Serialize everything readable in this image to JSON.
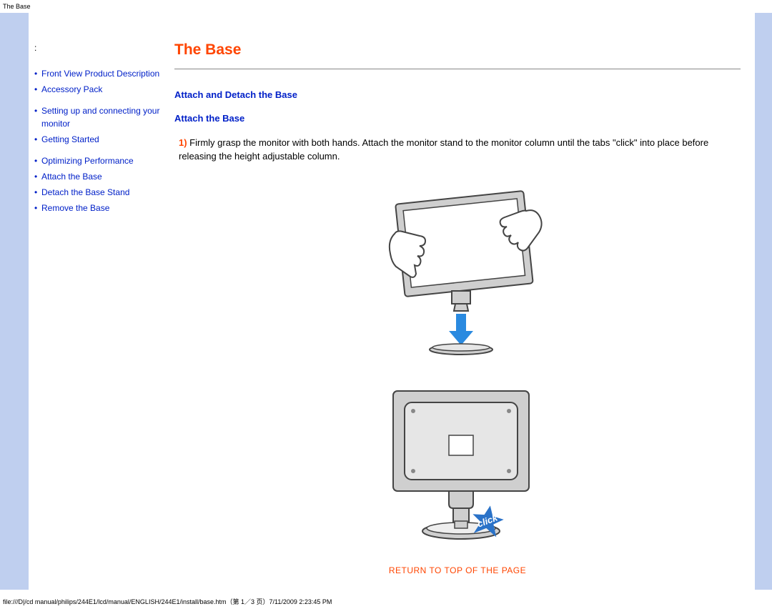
{
  "colors": {
    "accent_orange": "#ff4500",
    "link_blue": "#0020c8",
    "sidebar_stripe": "#bfcfef",
    "rule": "#888888",
    "arrow_fill": "#2a8ae0",
    "click_star": "#2a72c8",
    "fig_stroke": "#444444",
    "fig_fill": "#cfcfcf"
  },
  "header_tab": "The Base",
  "nav": {
    "prefix": ":",
    "items": [
      {
        "label": "Front View Product Description",
        "group_start": false
      },
      {
        "label": "Accessory Pack",
        "group_start": false
      },
      {
        "label": "Setting up and connecting your monitor",
        "group_start": true
      },
      {
        "label": "Getting Started",
        "group_start": false
      },
      {
        "label": "Optimizing Performance",
        "group_start": true
      },
      {
        "label": "Attach the Base",
        "group_start": false
      },
      {
        "label": "Detach the Base Stand",
        "group_start": false
      },
      {
        "label": "Remove the Base",
        "group_start": false
      }
    ]
  },
  "content": {
    "title": "The Base",
    "section": "Attach and Detach the Base",
    "subsection": "Attach the Base",
    "step_num": "1)",
    "step_text": " Firmly grasp the monitor with both hands. Attach the monitor stand to the monitor column until the tabs \"click\" into place before releasing the height adjustable column.",
    "click_label": "click",
    "return_top": "RETURN TO TOP OF THE PAGE"
  },
  "footer": "file:///D|/cd manual/philips/244E1/lcd/manual/ENGLISH/244E1/install/base.htm（第 1／3 页）7/11/2009 2:23:45 PM"
}
